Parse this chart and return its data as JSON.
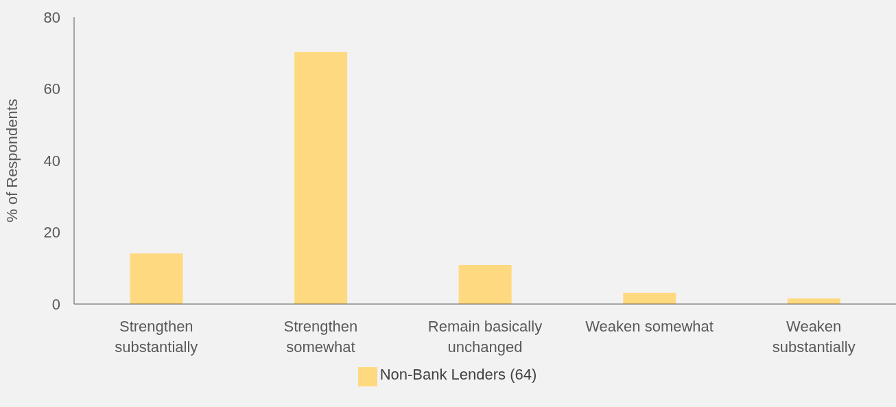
{
  "chart_data": {
    "type": "bar",
    "ylabel": "% of Respondents",
    "categories": [
      "Strengthen substantially",
      "Strengthen somewhat",
      "Remain basically unchanged",
      "Weaken somewhat",
      "Weaken substantially"
    ],
    "series": [
      {
        "name": "Non-Bank Lenders (64)",
        "color": "#ffd97f",
        "values": [
          14.1,
          70.3,
          10.9,
          3.1,
          1.6
        ]
      }
    ],
    "ylim": [
      0,
      80
    ],
    "yticks": [
      0,
      20,
      40,
      60,
      80
    ],
    "grid": false,
    "legend": "bottom"
  }
}
